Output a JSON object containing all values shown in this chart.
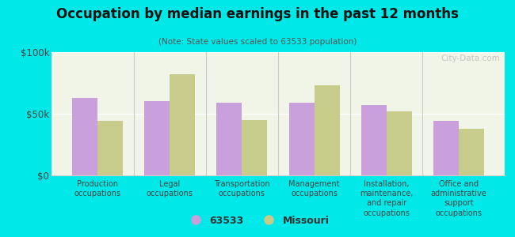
{
  "title": "Occupation by median earnings in the past 12 months",
  "subtitle": "(Note: State values scaled to 63533 population)",
  "categories": [
    "Production\noccupations",
    "Legal\noccupations",
    "Transportation\noccupations",
    "Management\noccupations",
    "Installation,\nmaintenance,\nand repair\noccupations",
    "Office and\nadministrative\nsupport\noccupations"
  ],
  "values_63533": [
    63000,
    60000,
    59000,
    59000,
    57000,
    44000
  ],
  "values_missouri": [
    44000,
    82000,
    45000,
    73000,
    52000,
    38000
  ],
  "color_63533": "#c9a0dc",
  "color_missouri": "#c8cc8a",
  "background_color": "#00e8e8",
  "plot_bg_color": "#f0f5e8",
  "ylim": [
    0,
    100000
  ],
  "yticks": [
    0,
    50000,
    100000
  ],
  "ytick_labels": [
    "$0",
    "$50k",
    "$100k"
  ],
  "bar_width": 0.35,
  "legend_label_63533": "63533",
  "legend_label_missouri": "Missouri",
  "watermark": "City-Data.com"
}
